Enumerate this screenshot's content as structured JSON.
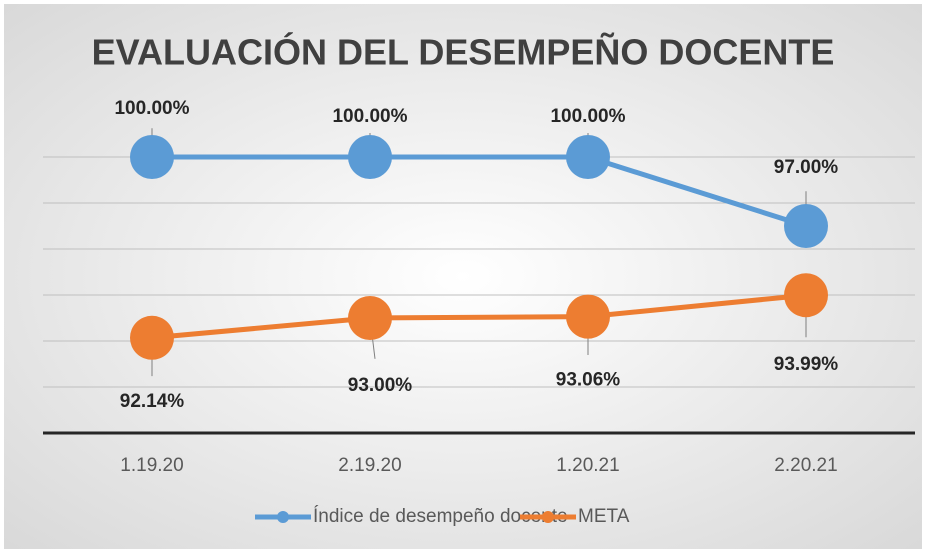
{
  "chart_data": {
    "type": "line",
    "title": "EVALUACIÓN DEL DESEMPEÑO DOCENTE",
    "categories": [
      "1.19.20",
      "2.19.20",
      "1.20.21",
      "2.20.21"
    ],
    "series": [
      {
        "name": "Índice  de desempeño docente",
        "color": "#5b9bd5",
        "values": [
          100,
          100,
          100,
          97
        ],
        "value_labels": [
          "100.00%",
          "100.00%",
          "100.00%",
          "97.00%"
        ]
      },
      {
        "name": "META",
        "color": "#ed7d31",
        "values": [
          92.14,
          93,
          93.06,
          93.99
        ],
        "value_labels": [
          "92.14%",
          "93.00%",
          "93.06%",
          "93.99%"
        ]
      }
    ],
    "ylim": [
      88,
      100
    ],
    "yticks": [
      88,
      90,
      92,
      94,
      96,
      98,
      100
    ],
    "grid": true
  }
}
